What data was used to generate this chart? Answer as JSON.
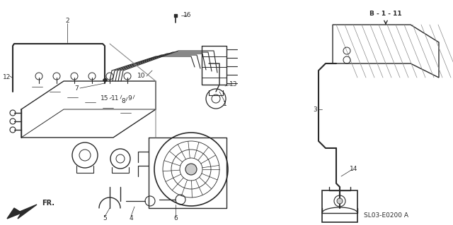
{
  "bg_color": "#ffffff",
  "line_color": "#2a2a2a",
  "part_number": "SL03-E0200 A",
  "figsize": [
    6.4,
    3.19
  ],
  "dpi": 100
}
